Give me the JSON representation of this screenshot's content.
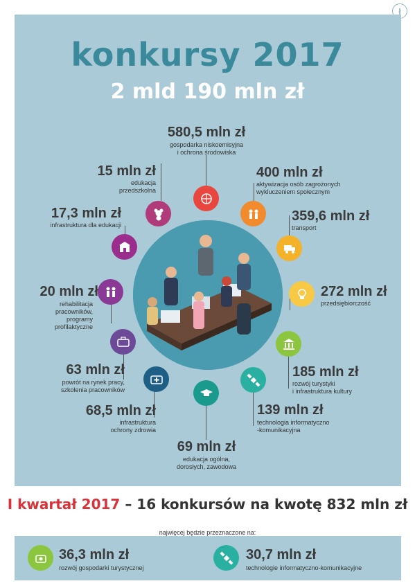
{
  "title": "konkursy 2017",
  "total": "2 mld 190 mln zł",
  "items": [
    {
      "amount": "580,5 mln zł",
      "desc": "gospodarka niskoemisyjna\ni ochrona środowiska",
      "color": "#e8463f",
      "icon": "globe-hands-icon"
    },
    {
      "amount": "400 mln zł",
      "desc": "aktywizacja osób zagrożonych\nwykluczeniem społecznym",
      "color": "#f28a2e",
      "icon": "people-support-icon"
    },
    {
      "amount": "359,6 mln zł",
      "desc": "transport",
      "color": "#f4b12a",
      "icon": "truck-icon"
    },
    {
      "amount": "272 mln zł",
      "desc": "przedsiębiorczość",
      "color": "#f7c944",
      "icon": "lightbulb-person-icon"
    },
    {
      "amount": "185 mln zł",
      "desc": "rozwój turystyki\ni infrastruktura kultury",
      "color": "#8cc63f",
      "icon": "museum-icon"
    },
    {
      "amount": "139 mln zł",
      "desc": "technologia informatyczno\n-komunikacyjna",
      "color": "#2ab0a0",
      "icon": "satellite-icon"
    },
    {
      "amount": "69 mln zł",
      "desc": "edukacja ogólna,\ndorosłych, zawodowa",
      "color": "#1a9a8c",
      "icon": "graduation-cap-icon"
    },
    {
      "amount": "68,5 mln zł",
      "desc": "infrastruktura\nochrony zdrowia",
      "color": "#1f5f86",
      "icon": "medical-kit-icon"
    },
    {
      "amount": "63 mln zł",
      "desc": "powrót na rynek pracy,\nszkolenia pracowników",
      "color": "#6c4a97",
      "icon": "briefcase-icon"
    },
    {
      "amount": "20 mln zł",
      "desc": "rehabilitacja\npracowników,\nprogramy\nprofilaktyczne",
      "color": "#8a3a96",
      "icon": "rehab-people-icon"
    },
    {
      "amount": "17,3 mln zł",
      "desc": "infrastruktura dla edukacji",
      "color": "#9b2d8d",
      "icon": "school-building-icon"
    },
    {
      "amount": "15 mln zł",
      "desc": "edukacja\nprzedszkolna",
      "color": "#b03a7a",
      "icon": "teddy-bear-icon"
    }
  ],
  "quarter": {
    "highlight": "I kwartał 2017",
    "rest": " – 16 konkursów na kwotę 832 mln zł",
    "note": "najwięcej będzie przeznaczone na:"
  },
  "footer": [
    {
      "amount": "36,3 mln zł",
      "desc": "rozwój gospodarki turystycznej",
      "color": "#8cc63f",
      "icon": "tourism-icon"
    },
    {
      "amount": "30,7 mln zł",
      "desc": "technologie informatyczno-komunikacyjne",
      "color": "#2ab0a0",
      "icon": "satellite-icon"
    }
  ],
  "logo": "ł"
}
